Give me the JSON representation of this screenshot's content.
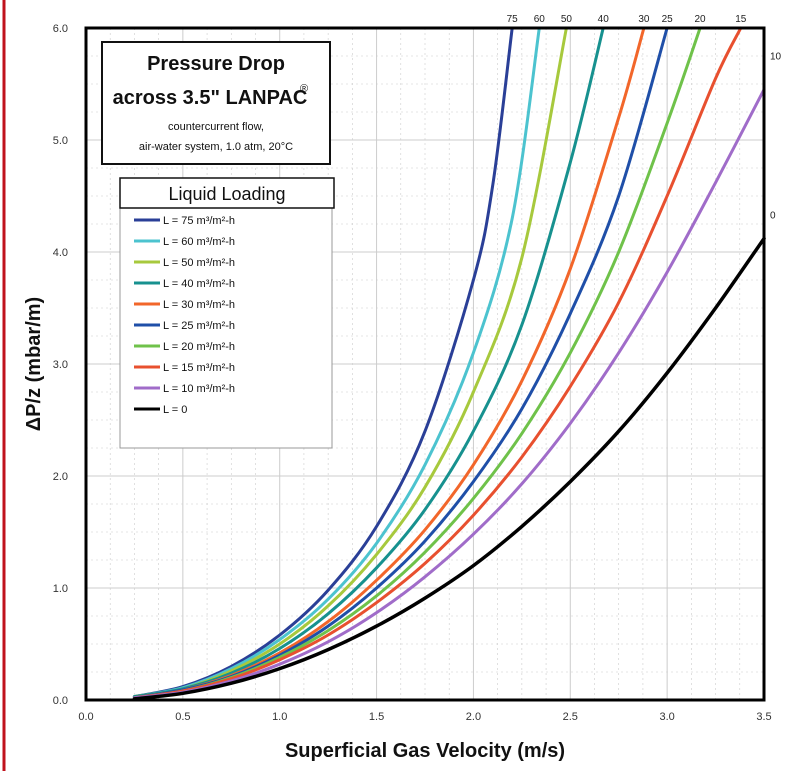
{
  "colors": {
    "border": "#c0121c",
    "grid": "#cccccc",
    "L75": "#2a3f97",
    "L60": "#4cc3cf",
    "L50": "#a7c93d",
    "L40": "#17918f",
    "L30": "#f2662a",
    "L25": "#1f4fa8",
    "L20": "#6fc24a",
    "L15": "#e8502f",
    "L10": "#a06cc9",
    "L0": "#000000"
  },
  "title_box": {
    "line1": "Pressure Drop",
    "line2": "across 3.5\" LANPAC",
    "registered": "®",
    "line3": "countercurrent flow,",
    "line4": "air-water system, 1.0 atm, 20°C"
  },
  "chart_data": {
    "type": "line",
    "xlabel": "Superficial Gas Velocity (m/s)",
    "ylabel": "ΔP/z (mbar/m)",
    "xlim": [
      0.0,
      3.5
    ],
    "ylim": [
      0.0,
      6.0
    ],
    "xticks": [
      "0.0",
      "0.5",
      "1.0",
      "1.5",
      "2.0",
      "2.5",
      "3.0",
      "3.5"
    ],
    "yticks": [
      "0.0",
      "1.0",
      "2.0",
      "3.0",
      "4.0",
      "5.0",
      "6.0"
    ],
    "grid": true,
    "legend_title": "Liquid Loading",
    "legend_position": "upper-left",
    "series": [
      {
        "name": "L = 75 m³/m²-h",
        "end_label": "75",
        "color_key": "L75",
        "points": [
          [
            0.25,
            0.03
          ],
          [
            0.5,
            0.12
          ],
          [
            0.75,
            0.3
          ],
          [
            1.0,
            0.58
          ],
          [
            1.25,
            0.98
          ],
          [
            1.5,
            1.55
          ],
          [
            1.75,
            2.4
          ],
          [
            2.0,
            3.75
          ],
          [
            2.1,
            4.6
          ],
          [
            2.2,
            6.0
          ]
        ]
      },
      {
        "name": "L = 60 m³/m²-h",
        "end_label": "60",
        "color_key": "L60",
        "points": [
          [
            0.25,
            0.03
          ],
          [
            0.5,
            0.11
          ],
          [
            0.75,
            0.28
          ],
          [
            1.0,
            0.54
          ],
          [
            1.25,
            0.9
          ],
          [
            1.5,
            1.4
          ],
          [
            1.75,
            2.1
          ],
          [
            2.0,
            3.1
          ],
          [
            2.2,
            4.3
          ],
          [
            2.34,
            6.0
          ]
        ]
      },
      {
        "name": "L = 50 m³/m²-h",
        "end_label": "50",
        "color_key": "L50",
        "points": [
          [
            0.25,
            0.03
          ],
          [
            0.5,
            0.1
          ],
          [
            0.75,
            0.26
          ],
          [
            1.0,
            0.5
          ],
          [
            1.25,
            0.84
          ],
          [
            1.5,
            1.3
          ],
          [
            1.75,
            1.9
          ],
          [
            2.0,
            2.75
          ],
          [
            2.25,
            3.95
          ],
          [
            2.48,
            6.0
          ]
        ]
      },
      {
        "name": "L = 40 m³/m²-h",
        "end_label": "40",
        "color_key": "L40",
        "points": [
          [
            0.25,
            0.03
          ],
          [
            0.5,
            0.1
          ],
          [
            0.75,
            0.24
          ],
          [
            1.0,
            0.46
          ],
          [
            1.25,
            0.77
          ],
          [
            1.5,
            1.18
          ],
          [
            1.75,
            1.7
          ],
          [
            2.0,
            2.4
          ],
          [
            2.25,
            3.35
          ],
          [
            2.5,
            4.8
          ],
          [
            2.67,
            6.0
          ]
        ]
      },
      {
        "name": "L = 30 m³/m²-h",
        "end_label": "30",
        "color_key": "L30",
        "points": [
          [
            0.25,
            0.02
          ],
          [
            0.5,
            0.09
          ],
          [
            0.75,
            0.22
          ],
          [
            1.0,
            0.42
          ],
          [
            1.25,
            0.7
          ],
          [
            1.5,
            1.07
          ],
          [
            1.75,
            1.52
          ],
          [
            2.0,
            2.1
          ],
          [
            2.25,
            2.85
          ],
          [
            2.5,
            3.85
          ],
          [
            2.75,
            5.2
          ],
          [
            2.88,
            6.0
          ]
        ]
      },
      {
        "name": "L = 25 m³/m²-h",
        "end_label": "25",
        "color_key": "L25",
        "points": [
          [
            0.25,
            0.02
          ],
          [
            0.5,
            0.09
          ],
          [
            0.75,
            0.21
          ],
          [
            1.0,
            0.4
          ],
          [
            1.25,
            0.66
          ],
          [
            1.5,
            1.0
          ],
          [
            1.75,
            1.42
          ],
          [
            2.0,
            1.95
          ],
          [
            2.25,
            2.6
          ],
          [
            2.5,
            3.45
          ],
          [
            2.75,
            4.5
          ],
          [
            3.0,
            6.0
          ]
        ]
      },
      {
        "name": "L = 20 m³/m²-h",
        "end_label": "20",
        "color_key": "L20",
        "points": [
          [
            0.25,
            0.02
          ],
          [
            0.5,
            0.08
          ],
          [
            0.75,
            0.2
          ],
          [
            1.0,
            0.38
          ],
          [
            1.25,
            0.62
          ],
          [
            1.5,
            0.93
          ],
          [
            1.75,
            1.32
          ],
          [
            2.0,
            1.8
          ],
          [
            2.25,
            2.38
          ],
          [
            2.5,
            3.1
          ],
          [
            2.75,
            4.0
          ],
          [
            3.0,
            5.15
          ],
          [
            3.17,
            6.0
          ]
        ]
      },
      {
        "name": "L = 15 m³/m²-h",
        "end_label": "15",
        "color_key": "L15",
        "points": [
          [
            0.25,
            0.02
          ],
          [
            0.5,
            0.08
          ],
          [
            0.75,
            0.19
          ],
          [
            1.0,
            0.36
          ],
          [
            1.25,
            0.58
          ],
          [
            1.5,
            0.87
          ],
          [
            1.75,
            1.22
          ],
          [
            2.0,
            1.65
          ],
          [
            2.25,
            2.17
          ],
          [
            2.5,
            2.8
          ],
          [
            2.75,
            3.55
          ],
          [
            3.0,
            4.5
          ],
          [
            3.25,
            5.55
          ],
          [
            3.38,
            6.0
          ]
        ]
      },
      {
        "name": "L = 10 m³/m²-h",
        "end_label": "10",
        "color_key": "L10",
        "points": [
          [
            0.25,
            0.02
          ],
          [
            0.5,
            0.07
          ],
          [
            0.75,
            0.17
          ],
          [
            1.0,
            0.32
          ],
          [
            1.25,
            0.52
          ],
          [
            1.5,
            0.78
          ],
          [
            1.75,
            1.1
          ],
          [
            2.0,
            1.48
          ],
          [
            2.25,
            1.93
          ],
          [
            2.5,
            2.47
          ],
          [
            2.75,
            3.1
          ],
          [
            3.0,
            3.82
          ],
          [
            3.25,
            4.62
          ],
          [
            3.5,
            5.45
          ]
        ]
      },
      {
        "name": "L =   0",
        "end_label": "0",
        "color_key": "L0",
        "points": [
          [
            0.25,
            0.01
          ],
          [
            0.5,
            0.06
          ],
          [
            0.75,
            0.15
          ],
          [
            1.0,
            0.28
          ],
          [
            1.25,
            0.45
          ],
          [
            1.5,
            0.66
          ],
          [
            1.75,
            0.91
          ],
          [
            2.0,
            1.2
          ],
          [
            2.25,
            1.55
          ],
          [
            2.5,
            1.95
          ],
          [
            2.75,
            2.4
          ],
          [
            3.0,
            2.92
          ],
          [
            3.25,
            3.5
          ],
          [
            3.5,
            4.12
          ]
        ]
      }
    ]
  }
}
